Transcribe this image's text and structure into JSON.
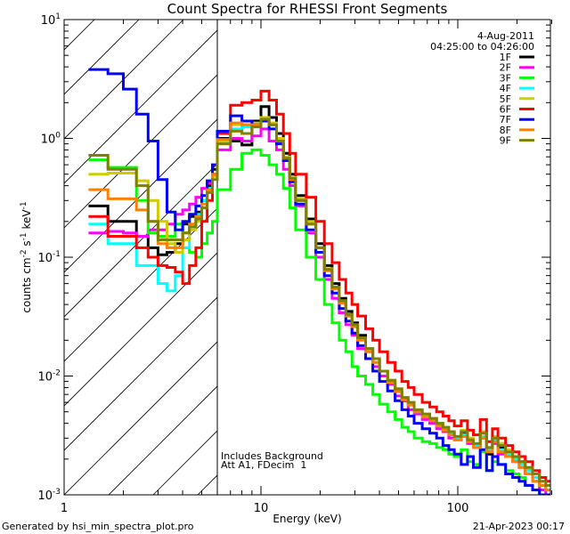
{
  "chart_data": {
    "type": "line",
    "step": true,
    "title": "Count Spectra for RHESSI Front Segments",
    "xlabel": "Energy (keV)",
    "ylabel_parts": {
      "base": "counts cm",
      "exp1": "-2",
      "mid": " s",
      "exp2": "-1",
      "end": " keV",
      "exp3": "-1"
    },
    "xscale": "log",
    "yscale": "log",
    "xlim": [
      1,
      300
    ],
    "ylim": [
      0.001,
      10
    ],
    "x_tick_labels": [
      "1",
      "10",
      "100"
    ],
    "y_tick_labels": [
      {
        "base": "10",
        "exp": "1",
        "value": 10
      },
      {
        "base": "10",
        "exp": "0",
        "value": 1
      },
      {
        "base": "10",
        "exp": "-1",
        "value": 0.1
      },
      {
        "base": "10",
        "exp": "-2",
        "value": 0.01
      },
      {
        "base": "10",
        "exp": "-3",
        "value": 0.001
      }
    ],
    "hatched_region_below_keV": 6,
    "legend_header": [
      "4-Aug-2011",
      "04:25:00 to 04:26:00"
    ],
    "legend_position": "top-right",
    "annotations": [
      "Includes Background",
      "Att A1, FDecim  1"
    ],
    "energy_edges": [
      1.33,
      1.67,
      2.0,
      2.33,
      2.67,
      3.0,
      3.33,
      3.67,
      4.0,
      4.33,
      4.67,
      5.0,
      5.33,
      5.67,
      6.0,
      7,
      8,
      9,
      10,
      11,
      12,
      13,
      14,
      15,
      17,
      19,
      21,
      23,
      25,
      27,
      29,
      31,
      34,
      37,
      40,
      44,
      48,
      52,
      56,
      60,
      66,
      72,
      78,
      84,
      90,
      96,
      104,
      112,
      120,
      130,
      140,
      150,
      160,
      175,
      190,
      205,
      220,
      240,
      260,
      280,
      300
    ],
    "series": [
      {
        "name": "1F",
        "color": "#000000",
        "values": [
          0.27,
          0.2,
          0.2,
          0.15,
          0.12,
          0.105,
          0.11,
          0.13,
          0.19,
          0.22,
          0.24,
          0.3,
          0.4,
          0.55,
          1.0,
          0.95,
          0.88,
          1.4,
          1.85,
          1.5,
          1.1,
          0.75,
          0.5,
          0.33,
          0.21,
          0.13,
          0.085,
          0.06,
          0.045,
          0.035,
          0.028,
          0.022,
          0.017,
          0.014,
          0.011,
          0.009,
          0.0075,
          0.0062,
          0.0058,
          0.005,
          0.0046,
          0.0042,
          0.0038,
          0.0035,
          0.0033,
          0.003,
          0.0033,
          0.0028,
          0.0026,
          0.0034,
          0.0022,
          0.003,
          0.0025,
          0.0023,
          0.002,
          0.0019,
          0.0016,
          0.0014,
          0.0012,
          0.0011
        ]
      },
      {
        "name": "2F",
        "color": "#ff00ff",
        "values": [
          0.16,
          0.165,
          0.16,
          0.15,
          0.17,
          0.17,
          0.19,
          0.23,
          0.25,
          0.28,
          0.32,
          0.38,
          0.42,
          0.48,
          0.8,
          1.0,
          0.95,
          1.05,
          1.2,
          0.95,
          0.8,
          0.55,
          0.4,
          0.27,
          0.16,
          0.1,
          0.065,
          0.045,
          0.034,
          0.027,
          0.022,
          0.017,
          0.014,
          0.012,
          0.01,
          0.0085,
          0.0068,
          0.0062,
          0.0052,
          0.0048,
          0.0043,
          0.004,
          0.0036,
          0.0034,
          0.003,
          0.0029,
          0.0031,
          0.0027,
          0.0025,
          0.003,
          0.0023,
          0.0027,
          0.0022,
          0.0021,
          0.0019,
          0.0017,
          0.0015,
          0.0013,
          0.0011,
          0.001
        ]
      },
      {
        "name": "3F",
        "color": "#00ff00",
        "values": [
          0.66,
          0.57,
          0.57,
          0.3,
          0.16,
          0.15,
          0.15,
          0.19,
          0.12,
          0.11,
          0.1,
          0.13,
          0.16,
          0.2,
          0.37,
          0.55,
          0.75,
          0.8,
          0.72,
          0.6,
          0.5,
          0.38,
          0.26,
          0.17,
          0.1,
          0.065,
          0.04,
          0.028,
          0.02,
          0.016,
          0.012,
          0.01,
          0.0085,
          0.007,
          0.0058,
          0.005,
          0.0043,
          0.0037,
          0.0034,
          0.003,
          0.0028,
          0.0027,
          0.0025,
          0.0024,
          0.0022,
          0.0021,
          0.0024,
          0.0019,
          0.0018,
          0.0023,
          0.0016,
          0.0019,
          0.0018,
          0.0016,
          0.0015,
          0.0014,
          0.0012,
          0.0011,
          0.001,
          0.001
        ]
      },
      {
        "name": "4F",
        "color": "#00ffff",
        "values": [
          0.19,
          0.13,
          0.13,
          0.085,
          0.085,
          0.06,
          0.052,
          0.07,
          0.12,
          0.18,
          0.23,
          0.3,
          0.38,
          0.5,
          0.9,
          1.2,
          1.25,
          1.3,
          1.45,
          1.3,
          0.95,
          0.68,
          0.45,
          0.3,
          0.19,
          0.12,
          0.078,
          0.055,
          0.042,
          0.032,
          0.026,
          0.021,
          0.016,
          0.013,
          0.011,
          0.0088,
          0.0074,
          0.0064,
          0.0058,
          0.005,
          0.0046,
          0.0043,
          0.004,
          0.0036,
          0.0033,
          0.003,
          0.0032,
          0.0029,
          0.0026,
          0.0031,
          0.0024,
          0.0029,
          0.0024,
          0.0022,
          0.002,
          0.0018,
          0.0016,
          0.0014,
          0.0012,
          0.0011
        ]
      },
      {
        "name": "5F",
        "color": "#cccc00",
        "values": [
          0.5,
          0.51,
          0.51,
          0.44,
          0.3,
          0.2,
          0.13,
          0.11,
          0.14,
          0.17,
          0.2,
          0.26,
          0.36,
          0.48,
          0.95,
          1.3,
          1.3,
          1.35,
          1.5,
          1.35,
          1.0,
          0.7,
          0.47,
          0.31,
          0.2,
          0.12,
          0.08,
          0.056,
          0.043,
          0.033,
          0.027,
          0.021,
          0.017,
          0.014,
          0.011,
          0.0092,
          0.0078,
          0.0066,
          0.006,
          0.0052,
          0.0047,
          0.0044,
          0.004,
          0.0037,
          0.0034,
          0.0031,
          0.0035,
          0.003,
          0.0027,
          0.0034,
          0.0025,
          0.0031,
          0.0027,
          0.0024,
          0.0021,
          0.0019,
          0.0017,
          0.0015,
          0.0013,
          0.0012
        ]
      },
      {
        "name": "6F",
        "color": "#ff0000",
        "values": [
          0.22,
          0.15,
          0.15,
          0.12,
          0.1,
          0.085,
          0.082,
          0.075,
          0.06,
          0.085,
          0.12,
          0.2,
          0.3,
          0.5,
          1.1,
          1.9,
          2.0,
          2.1,
          2.5,
          2.1,
          1.6,
          1.1,
          0.75,
          0.5,
          0.32,
          0.2,
          0.13,
          0.09,
          0.065,
          0.05,
          0.04,
          0.032,
          0.025,
          0.02,
          0.016,
          0.013,
          0.011,
          0.009,
          0.008,
          0.007,
          0.006,
          0.0055,
          0.005,
          0.0046,
          0.0042,
          0.0038,
          0.0042,
          0.0035,
          0.0032,
          0.0043,
          0.0028,
          0.0036,
          0.003,
          0.0026,
          0.0023,
          0.0021,
          0.0019,
          0.0016,
          0.0014,
          0.0013
        ]
      },
      {
        "name": "7F",
        "color": "#0000ff",
        "values": [
          3.8,
          3.5,
          2.6,
          1.6,
          0.95,
          0.45,
          0.24,
          0.17,
          0.2,
          0.23,
          0.27,
          0.33,
          0.44,
          0.6,
          1.15,
          1.55,
          1.4,
          1.3,
          1.4,
          1.2,
          0.9,
          0.65,
          0.43,
          0.28,
          0.17,
          0.11,
          0.07,
          0.05,
          0.037,
          0.029,
          0.023,
          0.018,
          0.014,
          0.011,
          0.009,
          0.0075,
          0.0062,
          0.0052,
          0.0046,
          0.004,
          0.0036,
          0.0033,
          0.003,
          0.0026,
          0.0024,
          0.0022,
          0.0018,
          0.0021,
          0.0017,
          0.0024,
          0.0016,
          0.0021,
          0.0018,
          0.0015,
          0.0014,
          0.0013,
          0.0012,
          0.0011,
          0.001,
          0.001
        ]
      },
      {
        "name": "8F",
        "color": "#ff7f00",
        "values": [
          0.37,
          0.31,
          0.31,
          0.25,
          0.2,
          0.13,
          0.12,
          0.12,
          0.16,
          0.19,
          0.22,
          0.28,
          0.37,
          0.5,
          0.98,
          1.35,
          1.3,
          1.3,
          1.45,
          1.3,
          0.95,
          0.68,
          0.45,
          0.3,
          0.19,
          0.12,
          0.077,
          0.054,
          0.041,
          0.032,
          0.026,
          0.02,
          0.016,
          0.013,
          0.011,
          0.0088,
          0.0074,
          0.0063,
          0.0057,
          0.005,
          0.0045,
          0.0042,
          0.0038,
          0.0035,
          0.0032,
          0.0029,
          0.0031,
          0.0028,
          0.0025,
          0.003,
          0.0023,
          0.0028,
          0.0023,
          0.0021,
          0.0019,
          0.0017,
          0.0015,
          0.0013,
          0.0012,
          0.0011
        ]
      },
      {
        "name": "9F",
        "color": "#7f7f00",
        "values": [
          0.72,
          0.55,
          0.55,
          0.4,
          0.2,
          0.14,
          0.14,
          0.14,
          0.16,
          0.18,
          0.21,
          0.26,
          0.35,
          0.45,
          0.9,
          1.15,
          1.1,
          1.25,
          1.45,
          1.3,
          0.95,
          0.68,
          0.46,
          0.3,
          0.19,
          0.12,
          0.079,
          0.056,
          0.043,
          0.033,
          0.027,
          0.021,
          0.017,
          0.014,
          0.011,
          0.0092,
          0.0078,
          0.0066,
          0.006,
          0.0052,
          0.0048,
          0.0044,
          0.004,
          0.0037,
          0.0034,
          0.0031,
          0.0034,
          0.0029,
          0.0027,
          0.0033,
          0.0025,
          0.003,
          0.0026,
          0.0023,
          0.0021,
          0.0019,
          0.0017,
          0.0015,
          0.0013,
          0.0012
        ]
      }
    ]
  },
  "footer": {
    "left": "Generated by hsi_min_spectra_plot.pro",
    "right": "21-Apr-2023 00:17"
  }
}
